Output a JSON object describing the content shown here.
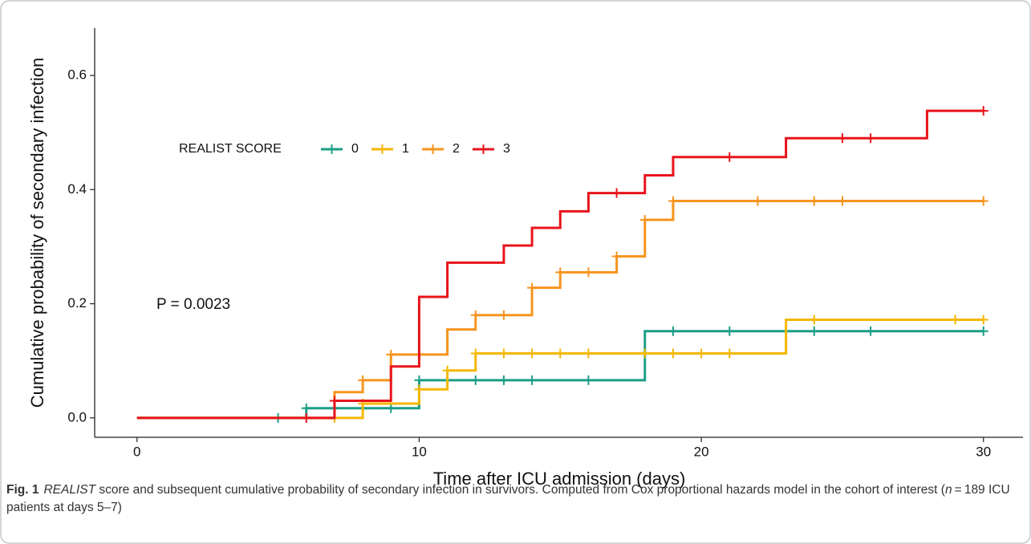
{
  "chart_data": {
    "type": "step",
    "xlabel": "Time after ICU admission (days)",
    "ylabel": "Cumulative probability of secondary infection",
    "xlim": [
      -1.5,
      31.4
    ],
    "ylim": [
      -0.034,
      0.683
    ],
    "xticks": [
      0,
      10,
      20,
      30
    ],
    "yticks": [
      {
        "value": 0,
        "label": "0.0"
      },
      0.2,
      0.4,
      0.6
    ],
    "legend_title": "REALIST SCORE",
    "annotation": "P = 0.0023",
    "series": [
      {
        "name": "0",
        "color": "#1b9e86",
        "x": [
          0,
          6,
          10,
          18,
          30
        ],
        "values": [
          0,
          0.017,
          0.066,
          0.152,
          0.152
        ],
        "censored": [
          5,
          6,
          9,
          10,
          12,
          13,
          14,
          16,
          19,
          21,
          24,
          26,
          30
        ]
      },
      {
        "name": "1",
        "color": "#f5b700",
        "x": [
          0,
          8,
          10,
          11,
          12,
          23,
          30
        ],
        "values": [
          0,
          0.025,
          0.05,
          0.083,
          0.113,
          0.172,
          0.172
        ],
        "censored": [
          7,
          8,
          10,
          11,
          12,
          13,
          14,
          15,
          16,
          18,
          19,
          20,
          21,
          24,
          29,
          30
        ]
      },
      {
        "name": "2",
        "color": "#f7941d",
        "x": [
          0,
          7,
          8,
          9,
          11,
          12,
          14,
          15,
          17,
          18,
          19,
          30
        ],
        "values": [
          0,
          0.045,
          0.066,
          0.111,
          0.155,
          0.18,
          0.228,
          0.255,
          0.283,
          0.347,
          0.38,
          0.38
        ],
        "censored": [
          8,
          9,
          12,
          13,
          14,
          15,
          16,
          17,
          18,
          19,
          22,
          24,
          25,
          30
        ]
      },
      {
        "name": "3",
        "color": "#e8141c",
        "x": [
          0,
          7,
          9,
          10,
          11,
          13,
          14,
          15,
          16,
          18,
          19,
          23,
          28,
          30
        ],
        "values": [
          0,
          0.03,
          0.09,
          0.212,
          0.272,
          0.302,
          0.333,
          0.362,
          0.394,
          0.425,
          0.457,
          0.49,
          0.538,
          0.538
        ],
        "censored": [
          6,
          7,
          17,
          21,
          25,
          26,
          30
        ]
      }
    ]
  },
  "caption": {
    "label": "Fig. 1",
    "parts": [
      "REALIST",
      " score and subsequent cumulative probability of secondary infection in survivors. Computed from Cox proportional hazards model in the cohort of interest (",
      "n",
      " = 189 ICU patients at days 5–7)"
    ]
  }
}
